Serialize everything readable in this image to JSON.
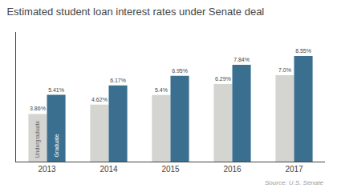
{
  "chart_data": {
    "type": "bar",
    "title": "Estimated student loan interest rates under Senate deal",
    "categories": [
      "2013",
      "2014",
      "2015",
      "2016",
      "2017"
    ],
    "series": [
      {
        "name": "Undergraduate",
        "color": "#d4d4d0",
        "values": [
          3.86,
          4.62,
          5.4,
          6.29,
          7.0
        ],
        "value_labels": [
          "3.86%",
          "4.62%",
          "5.4%",
          "6.29%",
          "7.0%"
        ]
      },
      {
        "name": "Graduate",
        "color": "#3a6f8f",
        "values": [
          5.41,
          6.17,
          6.95,
          7.84,
          8.55
        ],
        "value_labels": [
          "5.41%",
          "6.17%",
          "6.95%",
          "7.84%",
          "8.55%"
        ]
      }
    ],
    "ylim": [
      0,
      10.5
    ],
    "data_labels": true,
    "tick_labels": "x",
    "grid": false,
    "annotations": [
      "Source: U.S. Senate"
    ]
  }
}
